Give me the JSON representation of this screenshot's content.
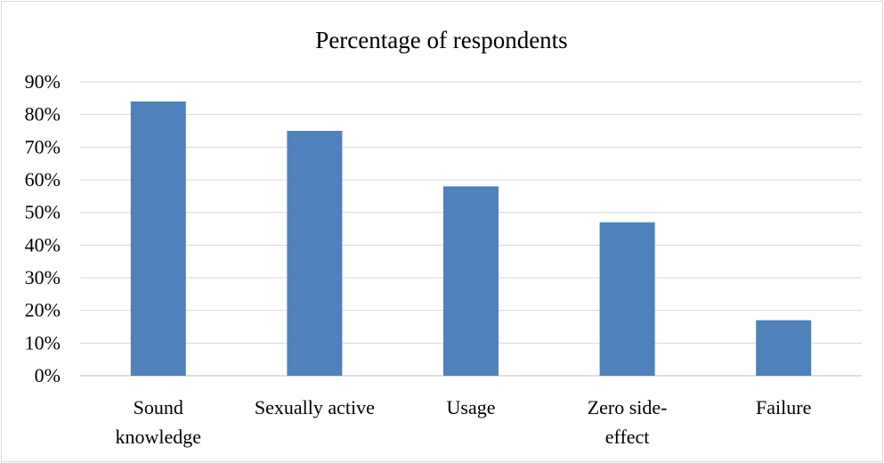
{
  "chart_data": {
    "type": "bar",
    "title": "Percentage  of respondents",
    "xlabel": "",
    "ylabel": "",
    "categories": [
      [
        "Sound",
        "knowledge"
      ],
      [
        "Sexually active"
      ],
      [
        "Usage"
      ],
      [
        "Zero side-",
        "effect"
      ],
      [
        "Failure"
      ]
    ],
    "values": [
      84,
      75,
      58,
      47,
      17
    ],
    "ylim": [
      0,
      90
    ],
    "yticks": [
      0,
      10,
      20,
      30,
      40,
      50,
      60,
      70,
      80,
      90
    ],
    "ytick_labels": [
      "0%",
      "10%",
      "20%",
      "30%",
      "40%",
      "50%",
      "60%",
      "70%",
      "80%",
      "90%"
    ],
    "grid": true,
    "legend": "none",
    "colors": {
      "bar": "#4f81bd",
      "grid": "#d9d9d9",
      "axis": "#bfbfbf"
    }
  }
}
